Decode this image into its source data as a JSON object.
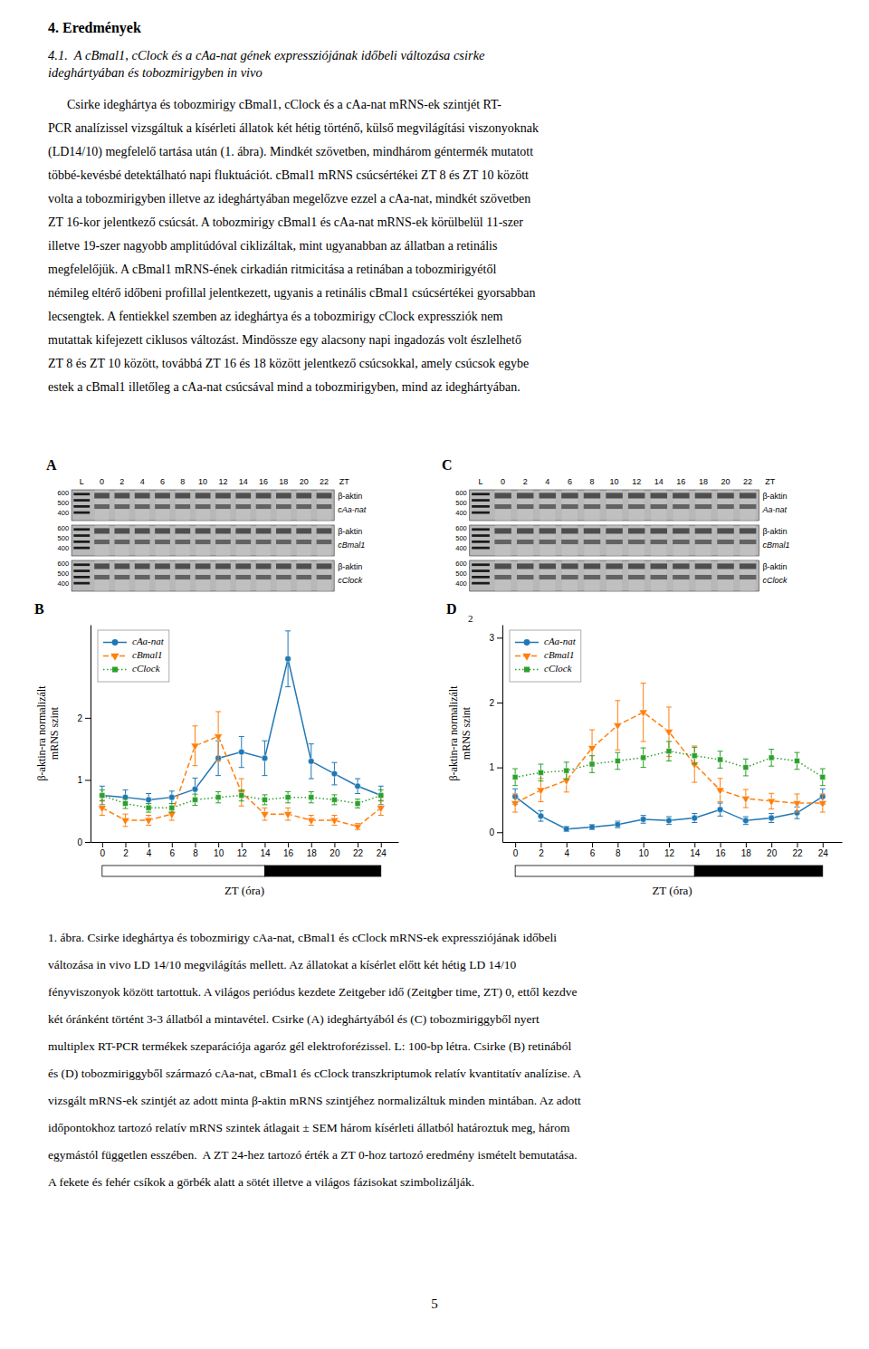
{
  "heading": "4. Eredmények",
  "subtitle": "4.1.  A cBmal1, cClock és a cAa-nat gének expressziójának időbeli változása csirke\nideghártyában és tobozmirigyben in vivo",
  "body": [
    "      Csirke ideghártya és tobozmirigy cBmal1, cClock és a cAa-nat mRNS-ek szintjét RT-",
    "PCR analízissel vizsgáltuk a kísérleti állatok két hétig történő, külső megvilágítási viszonyoknak",
    "(LD14/10) megfelelő tartása után (1. ábra). Mindkét szövetben, mindhárom géntermék mutatott",
    "többé-kevésbé detektálható napi fluktuációt. cBmal1 mRNS csúcsértékei ZT 8 és ZT 10 között",
    "volta a tobozmirigyben illetve az ideghártyában megelőzve ezzel a cAa-nat, mindkét szövetben",
    "ZT 16-kor jelentkező csúcsát. A tobozmirigy cBmal1 és cAa-nat mRNS-ek körülbelül 11-szer",
    "illetve 19-szer nagyobb amplitúdóval ciklizáltak, mint ugyanabban az állatban a retinális",
    "megfelelőjük. A cBmal1 mRNS-ének cirkadián ritmicitása a retinában a tobozmirigyétől",
    "némileg eltérő időbeni profillal jelentkezett, ugyanis a retinális cBmal1 csúcsértékei gyorsabban",
    "lecsengtek. A fentiekkel szemben az ideghártya és a tobozmirigy cClock expressziók nem",
    "mutattak kifejezett ciklusos változást. Mindössze egy alacsony napi ingadozás volt észlelhető",
    "ZT 8 és ZT 10 között, továbbá ZT 16 és 18 között jelentkező csúcsokkal, amely csúcsok egybe",
    "estek a cBmal1 illetőleg a cAa-nat csúcsával mind a tobozmirigyben, mind az ideghártyában."
  ],
  "gels": [
    {
      "panel": "A",
      "lanes": [
        "L",
        "0",
        "2",
        "4",
        "6",
        "8",
        "10",
        "12",
        "14",
        "16",
        "18",
        "20",
        "22",
        "ZT"
      ],
      "sizes": [
        "600",
        "500",
        "400"
      ],
      "reference": "β-aktin",
      "genes": [
        "cAa-nat",
        "cBmal1",
        "cClock"
      ]
    },
    {
      "panel": "C",
      "lanes": [
        "L",
        "0",
        "2",
        "4",
        "6",
        "8",
        "10",
        "12",
        "14",
        "16",
        "18",
        "20",
        "22",
        "ZT"
      ],
      "sizes": [
        "600",
        "500",
        "400"
      ],
      "reference": "β-aktin",
      "genes": [
        "Aa-nat",
        "cBmal1",
        "cClock"
      ]
    }
  ],
  "chart_data": [
    {
      "type": "line",
      "title": "B",
      "xlabel": "ZT (óra)",
      "ylabel": "β-aktin-ra normalizált\nmRNS szint",
      "x": [
        0,
        2,
        4,
        6,
        8,
        10,
        12,
        14,
        16,
        18,
        20,
        22,
        24
      ],
      "xlim": [
        -1,
        25.5
      ],
      "xticks": [
        0,
        2,
        4,
        6,
        8,
        10,
        12,
        14,
        16,
        18,
        20,
        22,
        24
      ],
      "ylim": [
        0,
        3.5
      ],
      "yticks": [
        0,
        1,
        2
      ],
      "grid": false,
      "legend": "upper left",
      "light": [
        0,
        14
      ],
      "dark": [
        14,
        24
      ],
      "series": [
        {
          "name": "cAa-nat",
          "marker": "circle",
          "line_style": "solid",
          "values": [
            0.75,
            0.72,
            0.68,
            0.72,
            0.85,
            1.35,
            1.45,
            1.35,
            2.95,
            1.3,
            1.1,
            0.9,
            0.75
          ],
          "errors": [
            0.15,
            0.12,
            0.1,
            0.1,
            0.18,
            0.28,
            0.25,
            0.28,
            0.45,
            0.28,
            0.18,
            0.12,
            0.15
          ]
        },
        {
          "name": "cBmal1",
          "marker": "triangle-down",
          "line_style": "dashed",
          "values": [
            0.55,
            0.35,
            0.35,
            0.45,
            1.55,
            1.7,
            0.8,
            0.45,
            0.45,
            0.35,
            0.35,
            0.25,
            0.55
          ],
          "errors": [
            0.12,
            0.1,
            0.08,
            0.1,
            0.32,
            0.4,
            0.22,
            0.1,
            0.1,
            0.08,
            0.08,
            0.05,
            0.12
          ]
        },
        {
          "name": "cClock",
          "marker": "square",
          "line_style": "dotted",
          "values": [
            0.75,
            0.62,
            0.55,
            0.55,
            0.68,
            0.72,
            0.75,
            0.68,
            0.72,
            0.72,
            0.68,
            0.62,
            0.75
          ],
          "errors": [
            0.09,
            0.08,
            0.07,
            0.07,
            0.09,
            0.09,
            0.09,
            0.08,
            0.09,
            0.09,
            0.08,
            0.07,
            0.09
          ]
        }
      ]
    },
    {
      "type": "line",
      "title": "D",
      "annotation": "2",
      "xlabel": "ZT (óra)",
      "ylabel": "β-aktin-ra normalizált\nmRNS szint",
      "x": [
        0,
        2,
        4,
        6,
        8,
        10,
        12,
        14,
        16,
        18,
        20,
        22,
        24
      ],
      "xlim": [
        -1,
        25.5
      ],
      "xticks": [
        0,
        2,
        4,
        6,
        8,
        10,
        12,
        14,
        16,
        18,
        20,
        22,
        24
      ],
      "ylim": [
        -0.15,
        3.2
      ],
      "yticks": [
        0,
        1,
        2,
        3
      ],
      "grid": false,
      "legend": "upper left",
      "light": [
        0,
        14
      ],
      "dark": [
        14,
        24
      ],
      "series": [
        {
          "name": "cAa-nat",
          "marker": "circle",
          "line_style": "solid",
          "values": [
            0.55,
            0.25,
            0.05,
            0.08,
            0.12,
            0.2,
            0.18,
            0.22,
            0.35,
            0.18,
            0.22,
            0.3,
            0.55
          ],
          "errors": [
            0.12,
            0.08,
            0.04,
            0.04,
            0.05,
            0.06,
            0.06,
            0.07,
            0.1,
            0.06,
            0.07,
            0.09,
            0.12
          ]
        },
        {
          "name": "cBmal1",
          "marker": "triangle-down",
          "line_style": "dashed",
          "values": [
            0.45,
            0.65,
            0.8,
            1.3,
            1.65,
            1.85,
            1.55,
            1.05,
            0.65,
            0.52,
            0.48,
            0.45,
            0.45
          ],
          "errors": [
            0.14,
            0.18,
            0.18,
            0.28,
            0.38,
            0.45,
            0.38,
            0.28,
            0.18,
            0.14,
            0.12,
            0.14,
            0.14
          ]
        },
        {
          "name": "cClock",
          "marker": "square",
          "line_style": "dotted",
          "values": [
            0.85,
            0.92,
            0.95,
            1.05,
            1.1,
            1.15,
            1.25,
            1.18,
            1.12,
            1.0,
            1.15,
            1.1,
            0.85
          ],
          "errors": [
            0.13,
            0.13,
            0.13,
            0.13,
            0.13,
            0.15,
            0.15,
            0.13,
            0.13,
            0.13,
            0.13,
            0.13,
            0.13
          ]
        }
      ]
    }
  ],
  "caption": [
    "1. ábra. Csirke ideghártya és tobozmirigy cAa-nat, cBmal1 és cClock mRNS-ek expressziójának időbeli",
    "változása in vivo LD 14/10 megvilágítás mellett. Az állatokat a kísérlet előtt két hétig LD 14/10",
    "fényviszonyok között tartottuk. A világos periódus kezdete Zeitgeber idő (Zeitgber time, ZT) 0, ettől kezdve",
    "két óránként történt 3-3 állatból a mintavétel. Csirke (A) ideghártyából és (C) tobozmiriggyből nyert",
    "multiplex RT-PCR termékek szeparációja agaróz gél elektroforézissel. L: 100-bp létra. Csirke (B) retinából",
    "és (D) tobozmiriggyből származó cAa-nat, cBmal1 és cClock transzkriptumok relatív kvantitatív analízise. A",
    "vizsgált mRNS-ek szintjét az adott minta β-aktin mRNS szintjéhez normalizáltuk minden mintában. Az adott",
    "időpontokhoz tartozó relatív mRNS szintek átlagait ± SEM három kísérleti állatból határoztuk meg, három",
    "egymástól független esszében.  A ZT 24-hez tartozó érték a ZT 0-hoz tartozó eredmény ismételt bemutatása.",
    "A fekete és fehér csíkok a görbék alatt a sötét illetve a világos fázisokat szimbolizálják."
  ],
  "page_number": "5"
}
